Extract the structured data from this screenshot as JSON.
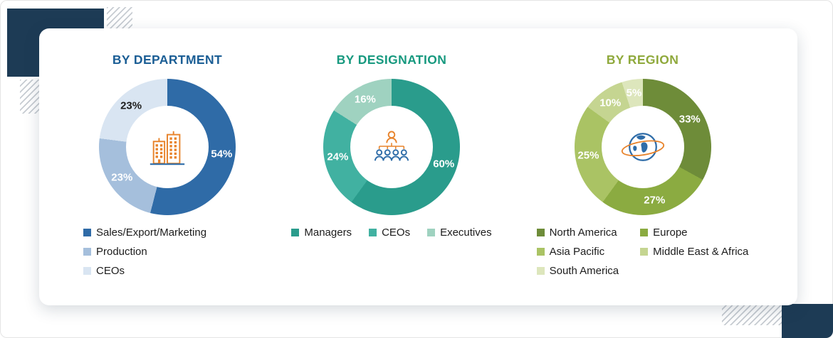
{
  "chart_data": [
    {
      "type": "pie",
      "donut": true,
      "title": "BY DEPARTMENT",
      "title_color": "#1b5e95",
      "center_icon": "buildings-icon",
      "legend_layout": "vertical",
      "legend_position": "bottom",
      "unit": "%",
      "slices": [
        {
          "label": "Sales/Export/Marketing",
          "value": 54,
          "color": "#2f6ba7",
          "label_color": "#ffffff"
        },
        {
          "label": "Production",
          "value": 23,
          "color": "#a5bfdc",
          "label_color": "#ffffff"
        },
        {
          "label": "CEOs",
          "value": 23,
          "color": "#d9e5f2",
          "label_color": "#1d1d1d"
        }
      ]
    },
    {
      "type": "pie",
      "donut": true,
      "title": "BY DESIGNATION",
      "title_color": "#17997f",
      "center_icon": "org-chart-icon",
      "legend_layout": "horizontal",
      "legend_position": "bottom",
      "unit": "%",
      "slices": [
        {
          "label": "Managers",
          "value": 60,
          "color": "#2a9c8c",
          "label_color": "#ffffff"
        },
        {
          "label": "CEOs",
          "value": 24,
          "color": "#41b1a1",
          "label_color": "#ffffff"
        },
        {
          "label": "Executives",
          "value": 16,
          "color": "#9fd2c0",
          "label_color": "#ffffff"
        }
      ]
    },
    {
      "type": "pie",
      "donut": true,
      "title": "BY REGION",
      "title_color": "#8fa93c",
      "center_icon": "globe-icon",
      "legend_layout": "two-column",
      "legend_position": "bottom",
      "unit": "%",
      "slices": [
        {
          "label": "North America",
          "value": 33,
          "color": "#6e8c39",
          "label_color": "#ffffff"
        },
        {
          "label": "Europe",
          "value": 27,
          "color": "#8bab41",
          "label_color": "#ffffff"
        },
        {
          "label": "Asia Pacific",
          "value": 25,
          "color": "#aac364",
          "label_color": "#ffffff"
        },
        {
          "label": "Middle East & Africa",
          "value": 10,
          "color": "#c5d591",
          "label_color": "#ffffff"
        },
        {
          "label": "South America",
          "value": 5,
          "color": "#dde6bc",
          "label_color": "#ffffff"
        }
      ]
    }
  ]
}
